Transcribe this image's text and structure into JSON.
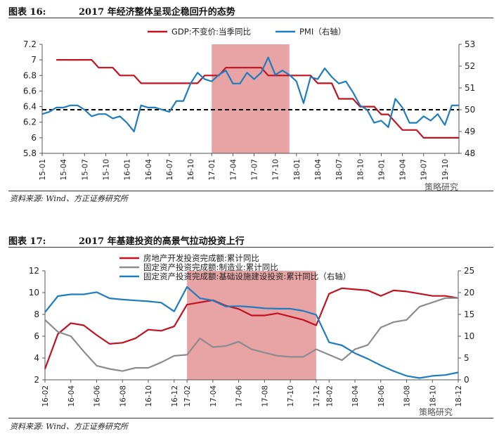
{
  "figure1": {
    "label": "图表 16:",
    "title": "2017 年经济整体呈现企稳回升的态势",
    "source": "资料来源: Wind、方正证券研究所",
    "watermark": "策略研究"
  },
  "figure2": {
    "label": "图表 17:",
    "title": "2017 年基建投资的高景气拉动投资上行",
    "source": "资料来源: Wind、方正证券研究所",
    "watermark": "策略研究"
  },
  "colors": {
    "red": "#c0121f",
    "blue": "#1f7dbf",
    "gray": "#8c8c8c",
    "shade": "#e8a3a5",
    "refline": "#000000"
  },
  "chart_data": [
    {
      "type": "line",
      "title": "2017 年经济整体呈现企稳回升的态势",
      "x": [
        "15-01",
        "15-02",
        "15-03",
        "15-04",
        "15-05",
        "15-06",
        "15-07",
        "15-08",
        "15-09",
        "15-10",
        "15-11",
        "15-12",
        "16-01",
        "16-02",
        "16-03",
        "16-04",
        "16-05",
        "16-06",
        "16-07",
        "16-08",
        "16-09",
        "16-10",
        "16-11",
        "16-12",
        "17-01",
        "17-02",
        "17-03",
        "17-04",
        "17-05",
        "17-06",
        "17-07",
        "17-08",
        "17-09",
        "17-10",
        "17-11",
        "17-12",
        "18-01",
        "18-02",
        "18-03",
        "18-04",
        "18-05",
        "18-06",
        "18-07",
        "18-08",
        "18-09",
        "18-10",
        "18-11",
        "18-12",
        "19-01",
        "19-02",
        "19-03",
        "19-04",
        "19-05",
        "19-06",
        "19-07",
        "19-08",
        "19-09",
        "19-10",
        "19-11",
        "19-12"
      ],
      "xticks": [
        "15-01",
        "15-04",
        "15-07",
        "15-10",
        "16-01",
        "16-04",
        "16-07",
        "16-10",
        "17-01",
        "17-04",
        "17-07",
        "17-10",
        "18-01",
        "18-04",
        "18-07",
        "18-10",
        "19-01",
        "19-04",
        "19-07",
        "19-10"
      ],
      "ylim_left": [
        5.8,
        7.2
      ],
      "yticks_left": [
        "5.8",
        "6",
        "6.2",
        "6.4",
        "6.6",
        "6.8",
        "7",
        "7.2"
      ],
      "ylim_right": [
        48,
        53
      ],
      "yticks_right": [
        "48",
        "49",
        "50",
        "51",
        "52",
        "53"
      ],
      "shaded_range": [
        "17-01",
        "17-12"
      ],
      "reference_line": {
        "axis": "right",
        "value": 50,
        "style": "dashed"
      },
      "legend_position": "top",
      "series": [
        {
          "name": "GDP:不变价:当季同比",
          "axis": "left",
          "color": "red",
          "values": [
            null,
            null,
            7.0,
            7.0,
            7.0,
            7.0,
            7.0,
            7.0,
            6.9,
            6.9,
            6.9,
            6.8,
            6.8,
            6.8,
            6.7,
            6.7,
            6.7,
            6.7,
            6.7,
            6.7,
            6.7,
            6.7,
            6.7,
            6.8,
            6.8,
            6.8,
            6.9,
            6.9,
            6.9,
            6.9,
            6.9,
            6.9,
            6.8,
            6.8,
            6.8,
            6.8,
            6.8,
            6.8,
            6.8,
            6.7,
            6.7,
            6.7,
            6.5,
            6.5,
            6.5,
            6.4,
            6.4,
            6.4,
            6.3,
            6.3,
            6.2,
            6.1,
            6.1,
            6.1,
            6.0,
            6.0,
            6.0,
            6.0,
            6.0,
            6.0
          ]
        },
        {
          "name": "PMI（右轴）",
          "axis": "right",
          "color": "blue",
          "values": [
            49.8,
            49.9,
            50.1,
            50.1,
            50.2,
            50.2,
            50.0,
            49.7,
            49.8,
            49.8,
            49.6,
            49.7,
            49.4,
            49.0,
            50.2,
            50.1,
            50.1,
            50.0,
            49.9,
            50.4,
            50.4,
            51.2,
            51.7,
            51.4,
            51.3,
            51.6,
            51.8,
            51.2,
            51.2,
            51.7,
            51.4,
            51.7,
            52.4,
            51.6,
            51.8,
            51.6,
            51.3,
            50.3,
            51.5,
            51.4,
            51.9,
            51.5,
            51.2,
            51.3,
            50.8,
            50.2,
            50.0,
            49.4,
            49.5,
            49.2,
            50.5,
            50.1,
            49.4,
            49.4,
            49.7,
            49.5,
            49.8,
            49.3,
            50.2,
            50.2
          ]
        }
      ]
    },
    {
      "type": "line",
      "title": "2017 年基建投资的高景气拉动投资上行",
      "x": [
        "16-02",
        "16-03",
        "16-04",
        "16-05",
        "16-06",
        "16-07",
        "16-08",
        "16-09",
        "16-10",
        "16-11",
        "16-12",
        "17-02",
        "17-03",
        "17-04",
        "17-05",
        "17-06",
        "17-07",
        "17-08",
        "17-09",
        "17-10",
        "17-11",
        "17-12",
        "18-02",
        "18-03",
        "18-04",
        "18-05",
        "18-06",
        "18-07",
        "18-08",
        "18-09",
        "18-10",
        "18-11",
        "18-12"
      ],
      "xticks": [
        "16-02",
        "16-04",
        "16-06",
        "16-08",
        "16-10",
        "16-12",
        "17-02",
        "17-04",
        "17-06",
        "17-08",
        "17-10",
        "17-12",
        "18-02",
        "18-04",
        "18-06",
        "18-08",
        "18-10",
        "18-12"
      ],
      "ylim_left": [
        2,
        12
      ],
      "yticks_left": [
        "2",
        "4",
        "6",
        "8",
        "10",
        "12"
      ],
      "ylim_right": [
        0,
        25
      ],
      "yticks_right": [
        "0",
        "5",
        "10",
        "15",
        "20",
        "25"
      ],
      "shaded_range": [
        "17-02",
        "17-12"
      ],
      "legend_position": "top",
      "series": [
        {
          "name": "房地产开发投资完成额:累计同比",
          "axis": "left",
          "color": "red",
          "values": [
            3.0,
            6.2,
            7.2,
            7.0,
            6.1,
            5.3,
            5.4,
            5.8,
            6.6,
            6.5,
            6.9,
            8.9,
            9.1,
            9.3,
            8.8,
            8.5,
            7.9,
            7.9,
            8.1,
            7.8,
            7.5,
            7.0,
            9.9,
            10.4,
            10.3,
            10.2,
            9.7,
            10.2,
            10.1,
            9.9,
            9.7,
            9.7,
            9.5
          ]
        },
        {
          "name": "固定资产投资完成额:制造业:累计同比",
          "axis": "left",
          "color": "gray",
          "values": [
            7.5,
            6.4,
            6.0,
            4.6,
            3.3,
            3.0,
            2.8,
            3.1,
            3.1,
            3.6,
            4.2,
            4.3,
            5.8,
            5.0,
            5.1,
            5.5,
            4.8,
            4.5,
            4.2,
            4.1,
            4.1,
            4.8,
            4.3,
            3.8,
            4.8,
            5.2,
            6.8,
            7.3,
            7.5,
            8.7,
            9.1,
            9.5,
            9.5
          ]
        },
        {
          "name": "固定资产投资完成额:基础设施建设投资:累计同比（右轴）",
          "axis": "right",
          "color": "blue",
          "values": [
            15.5,
            19.2,
            19.6,
            19.6,
            20.1,
            18.7,
            18.4,
            18.2,
            18.0,
            17.7,
            15.7,
            21.3,
            18.7,
            18.2,
            16.8,
            16.9,
            16.7,
            16.4,
            16.3,
            16.3,
            15.8,
            14.9,
            8.6,
            7.9,
            6.1,
            4.8,
            3.3,
            2.0,
            0.9,
            0.4,
            0.9,
            1.1,
            1.7
          ]
        }
      ]
    }
  ]
}
